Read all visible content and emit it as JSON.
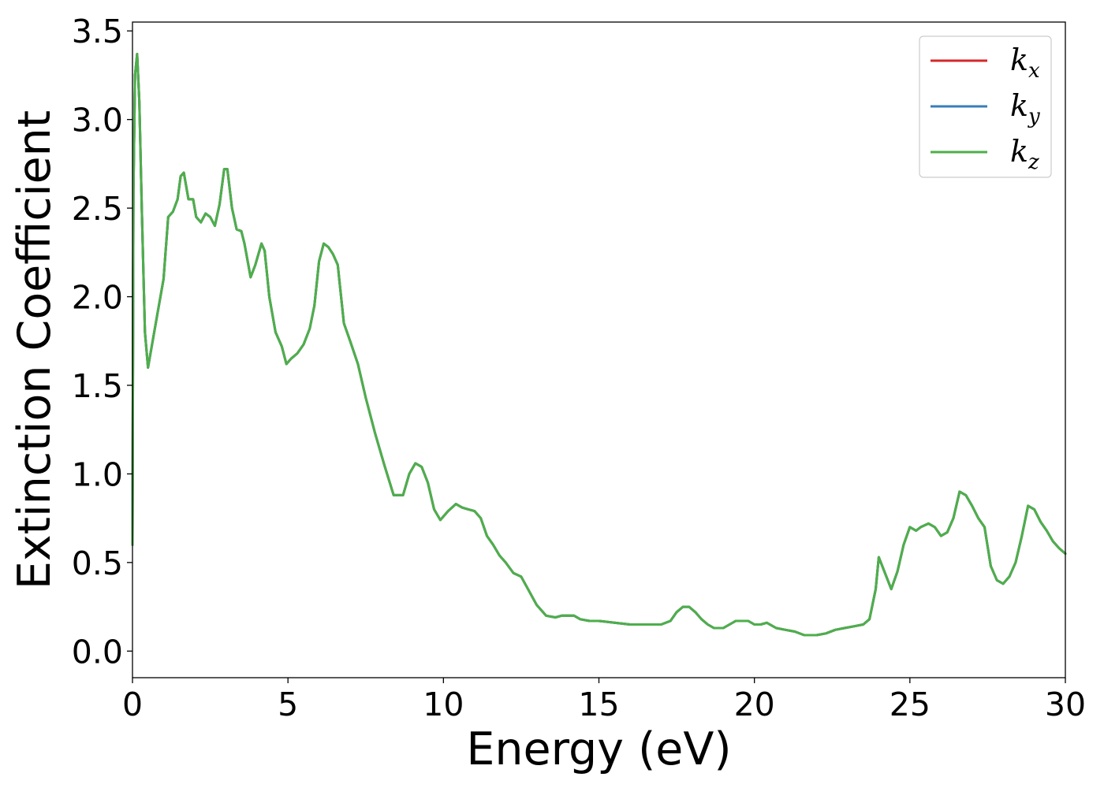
{
  "chart_data": {
    "type": "line",
    "xlabel": "Energy (eV)",
    "ylabel": "Extinction Coefficient",
    "xlim": [
      0,
      30
    ],
    "ylim": [
      -0.15,
      3.55
    ],
    "xticks": [
      0,
      5,
      10,
      15,
      20,
      25,
      30
    ],
    "xtick_labels": [
      "0",
      "5",
      "10",
      "15",
      "20",
      "25",
      "30"
    ],
    "yticks": [
      0.0,
      0.5,
      1.0,
      1.5,
      2.0,
      2.5,
      3.0,
      3.5
    ],
    "ytick_labels": [
      "0.0",
      "0.5",
      "1.0",
      "1.5",
      "2.0",
      "2.5",
      "3.0",
      "3.5"
    ],
    "grid": false,
    "legend_position": "top-right",
    "x": [
      0.0,
      0.03,
      0.08,
      0.15,
      0.22,
      0.3,
      0.4,
      0.5,
      0.65,
      0.8,
      1.0,
      1.15,
      1.3,
      1.45,
      1.55,
      1.65,
      1.8,
      1.95,
      2.05,
      2.2,
      2.35,
      2.5,
      2.65,
      2.8,
      2.95,
      3.05,
      3.2,
      3.35,
      3.5,
      3.6,
      3.8,
      3.95,
      4.15,
      4.25,
      4.4,
      4.6,
      4.8,
      4.95,
      5.1,
      5.3,
      5.5,
      5.7,
      5.85,
      6.0,
      6.15,
      6.3,
      6.45,
      6.6,
      6.8,
      7.0,
      7.25,
      7.5,
      7.8,
      8.1,
      8.4,
      8.7,
      8.9,
      9.1,
      9.3,
      9.5,
      9.7,
      9.9,
      10.15,
      10.4,
      10.6,
      10.8,
      11.0,
      11.2,
      11.4,
      11.6,
      11.8,
      12.0,
      12.25,
      12.5,
      12.75,
      13.0,
      13.3,
      13.6,
      13.8,
      14.0,
      14.2,
      14.4,
      14.7,
      15.0,
      15.5,
      16.0,
      16.5,
      17.0,
      17.3,
      17.5,
      17.7,
      17.9,
      18.1,
      18.3,
      18.5,
      18.7,
      19.0,
      19.2,
      19.4,
      19.6,
      19.8,
      20.0,
      20.2,
      20.4,
      20.7,
      21.0,
      21.3,
      21.6,
      22.0,
      22.3,
      22.6,
      22.9,
      23.2,
      23.5,
      23.7,
      23.9,
      24.0,
      24.2,
      24.4,
      24.6,
      24.8,
      25.0,
      25.2,
      25.35,
      25.6,
      25.8,
      26.0,
      26.2,
      26.4,
      26.6,
      26.8,
      27.0,
      27.2,
      27.4,
      27.6,
      27.8,
      28.0,
      28.2,
      28.4,
      28.6,
      28.8,
      29.0,
      29.2,
      29.4,
      29.6,
      29.8,
      30.0
    ],
    "series": [
      {
        "name": "k_x",
        "color": "#d62728",
        "values": [
          0.6,
          2.6,
          3.25,
          3.37,
          3.1,
          2.5,
          1.8,
          1.6,
          1.75,
          1.9,
          2.1,
          2.45,
          2.48,
          2.55,
          2.68,
          2.7,
          2.55,
          2.55,
          2.45,
          2.42,
          2.47,
          2.45,
          2.4,
          2.52,
          2.72,
          2.72,
          2.5,
          2.38,
          2.37,
          2.3,
          2.11,
          2.18,
          2.3,
          2.26,
          2.0,
          1.8,
          1.72,
          1.62,
          1.65,
          1.68,
          1.73,
          1.82,
          1.95,
          2.2,
          2.3,
          2.28,
          2.24,
          2.18,
          1.85,
          1.75,
          1.62,
          1.43,
          1.23,
          1.05,
          0.88,
          0.88,
          1.0,
          1.06,
          1.04,
          0.95,
          0.8,
          0.74,
          0.79,
          0.83,
          0.81,
          0.8,
          0.79,
          0.75,
          0.65,
          0.6,
          0.54,
          0.5,
          0.44,
          0.42,
          0.34,
          0.26,
          0.2,
          0.19,
          0.2,
          0.2,
          0.2,
          0.18,
          0.17,
          0.17,
          0.16,
          0.15,
          0.15,
          0.15,
          0.17,
          0.22,
          0.25,
          0.25,
          0.22,
          0.18,
          0.15,
          0.13,
          0.13,
          0.15,
          0.17,
          0.17,
          0.17,
          0.15,
          0.15,
          0.16,
          0.13,
          0.12,
          0.11,
          0.09,
          0.09,
          0.1,
          0.12,
          0.13,
          0.14,
          0.15,
          0.18,
          0.35,
          0.53,
          0.44,
          0.35,
          0.45,
          0.6,
          0.7,
          0.68,
          0.7,
          0.72,
          0.7,
          0.65,
          0.67,
          0.75,
          0.9,
          0.88,
          0.82,
          0.75,
          0.7,
          0.48,
          0.4,
          0.38,
          0.42,
          0.5,
          0.65,
          0.82,
          0.8,
          0.73,
          0.68,
          0.62,
          0.58,
          0.55
        ]
      },
      {
        "name": "k_y",
        "color": "#377eb8",
        "values": [
          0.6,
          2.6,
          3.25,
          3.37,
          3.1,
          2.5,
          1.8,
          1.6,
          1.75,
          1.9,
          2.1,
          2.45,
          2.48,
          2.55,
          2.68,
          2.7,
          2.55,
          2.55,
          2.45,
          2.42,
          2.47,
          2.45,
          2.4,
          2.52,
          2.72,
          2.72,
          2.5,
          2.38,
          2.37,
          2.3,
          2.11,
          2.18,
          2.3,
          2.26,
          2.0,
          1.8,
          1.72,
          1.62,
          1.65,
          1.68,
          1.73,
          1.82,
          1.95,
          2.2,
          2.3,
          2.28,
          2.24,
          2.18,
          1.85,
          1.75,
          1.62,
          1.43,
          1.23,
          1.05,
          0.88,
          0.88,
          1.0,
          1.06,
          1.04,
          0.95,
          0.8,
          0.74,
          0.79,
          0.83,
          0.81,
          0.8,
          0.79,
          0.75,
          0.65,
          0.6,
          0.54,
          0.5,
          0.44,
          0.42,
          0.34,
          0.26,
          0.2,
          0.19,
          0.2,
          0.2,
          0.2,
          0.18,
          0.17,
          0.17,
          0.16,
          0.15,
          0.15,
          0.15,
          0.17,
          0.22,
          0.25,
          0.25,
          0.22,
          0.18,
          0.15,
          0.13,
          0.13,
          0.15,
          0.17,
          0.17,
          0.17,
          0.15,
          0.15,
          0.16,
          0.13,
          0.12,
          0.11,
          0.09,
          0.09,
          0.1,
          0.12,
          0.13,
          0.14,
          0.15,
          0.18,
          0.35,
          0.53,
          0.44,
          0.35,
          0.45,
          0.6,
          0.7,
          0.68,
          0.7,
          0.72,
          0.7,
          0.65,
          0.67,
          0.75,
          0.9,
          0.88,
          0.82,
          0.75,
          0.7,
          0.48,
          0.4,
          0.38,
          0.42,
          0.5,
          0.65,
          0.82,
          0.8,
          0.73,
          0.68,
          0.62,
          0.58,
          0.55
        ]
      },
      {
        "name": "k_z",
        "color": "#4daf4a",
        "values": [
          0.6,
          2.6,
          3.25,
          3.37,
          3.1,
          2.5,
          1.8,
          1.6,
          1.75,
          1.9,
          2.1,
          2.45,
          2.48,
          2.55,
          2.68,
          2.7,
          2.55,
          2.55,
          2.45,
          2.42,
          2.47,
          2.45,
          2.4,
          2.52,
          2.72,
          2.72,
          2.5,
          2.38,
          2.37,
          2.3,
          2.11,
          2.18,
          2.3,
          2.26,
          2.0,
          1.8,
          1.72,
          1.62,
          1.65,
          1.68,
          1.73,
          1.82,
          1.95,
          2.2,
          2.3,
          2.28,
          2.24,
          2.18,
          1.85,
          1.75,
          1.62,
          1.43,
          1.23,
          1.05,
          0.88,
          0.88,
          1.0,
          1.06,
          1.04,
          0.95,
          0.8,
          0.74,
          0.79,
          0.83,
          0.81,
          0.8,
          0.79,
          0.75,
          0.65,
          0.6,
          0.54,
          0.5,
          0.44,
          0.42,
          0.34,
          0.26,
          0.2,
          0.19,
          0.2,
          0.2,
          0.2,
          0.18,
          0.17,
          0.17,
          0.16,
          0.15,
          0.15,
          0.15,
          0.17,
          0.22,
          0.25,
          0.25,
          0.22,
          0.18,
          0.15,
          0.13,
          0.13,
          0.15,
          0.17,
          0.17,
          0.17,
          0.15,
          0.15,
          0.16,
          0.13,
          0.12,
          0.11,
          0.09,
          0.09,
          0.1,
          0.12,
          0.13,
          0.14,
          0.15,
          0.18,
          0.35,
          0.53,
          0.44,
          0.35,
          0.45,
          0.6,
          0.7,
          0.68,
          0.7,
          0.72,
          0.7,
          0.65,
          0.67,
          0.75,
          0.9,
          0.88,
          0.82,
          0.75,
          0.7,
          0.48,
          0.4,
          0.38,
          0.42,
          0.5,
          0.65,
          0.82,
          0.8,
          0.73,
          0.68,
          0.62,
          0.58,
          0.55
        ]
      }
    ],
    "legend": [
      {
        "base": "k",
        "sub": "x",
        "color": "#d62728"
      },
      {
        "base": "k",
        "sub": "y",
        "color": "#377eb8"
      },
      {
        "base": "k",
        "sub": "z",
        "color": "#4daf4a"
      }
    ]
  }
}
